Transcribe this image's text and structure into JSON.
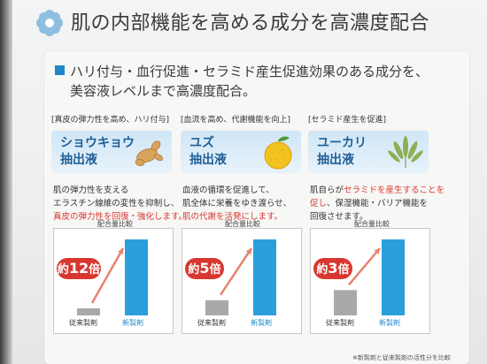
{
  "header": {
    "title": "肌の内部機能を高める成分を高濃度配合"
  },
  "lead": {
    "line1": "ハリ付与・血行促進・セラミド産生促進効果のある成分を、",
    "line2": "美容液レベルまで高濃度配合。"
  },
  "chart_caption": "配合量比較",
  "ingredients": [
    {
      "tag": "[真皮の弾力性を高め、ハリ付与]",
      "name_line1": "ショウキョウ",
      "name_line2": "抽出液",
      "icon": "ginger-icon",
      "desc": [
        "肌の弾力性を支える",
        "エラスチン線維の変性を抑制し、"
      ],
      "desc_red": "真皮の弾力性を回復・強化します。",
      "badge_prefix": "約",
      "badge_num": "12",
      "badge_suffix": "倍",
      "old_label": "従来製剤",
      "new_label": "新製剤"
    },
    {
      "tag": "[血流を高め、代謝機能を向上]",
      "name_line1": "ユズ",
      "name_line2": "抽出液",
      "icon": "yuzu-icon",
      "desc": [
        "血液の循環を促進して、",
        "肌全体に栄養をゆき渡らせ、"
      ],
      "desc_red": "肌の代謝を活発にします。",
      "badge_prefix": "約",
      "badge_num": "5",
      "badge_suffix": "倍",
      "old_label": "従来製剤",
      "new_label": "新製剤"
    },
    {
      "tag": "[セラミド産生を促進]",
      "name_line1": "ユーカリ",
      "name_line2": "抽出液",
      "icon": "eucalyptus-icon",
      "desc_a": "肌自らが",
      "desc_red_a": "セラミドを産生することを",
      "desc_red_b": "促し",
      "desc_b": "、保湿機能・バリア機能を",
      "desc_c": "回復させます。",
      "badge_prefix": "約",
      "badge_num": "3",
      "badge_suffix": "倍",
      "old_label": "従来製剤",
      "new_label": "新製剤"
    }
  ],
  "footnote": "※新製剤と従来製剤の活性分を比較",
  "colors": {
    "accent_blue": "#1f86c9",
    "bar_blue": "#2a9fdc",
    "bar_gray": "#a9a9a9",
    "badge_red": "#d8372f",
    "arrow_red": "#e8826f"
  },
  "chart_data": [
    {
      "type": "bar",
      "categories": [
        "従来製剤",
        "新製剤"
      ],
      "values": [
        1,
        12
      ],
      "annotation": "約12倍"
    },
    {
      "type": "bar",
      "categories": [
        "従来製剤",
        "新製剤"
      ],
      "values": [
        1,
        5
      ],
      "annotation": "約5倍"
    },
    {
      "type": "bar",
      "categories": [
        "従来製剤",
        "新製剤"
      ],
      "values": [
        1,
        3
      ],
      "annotation": "約3倍"
    }
  ]
}
